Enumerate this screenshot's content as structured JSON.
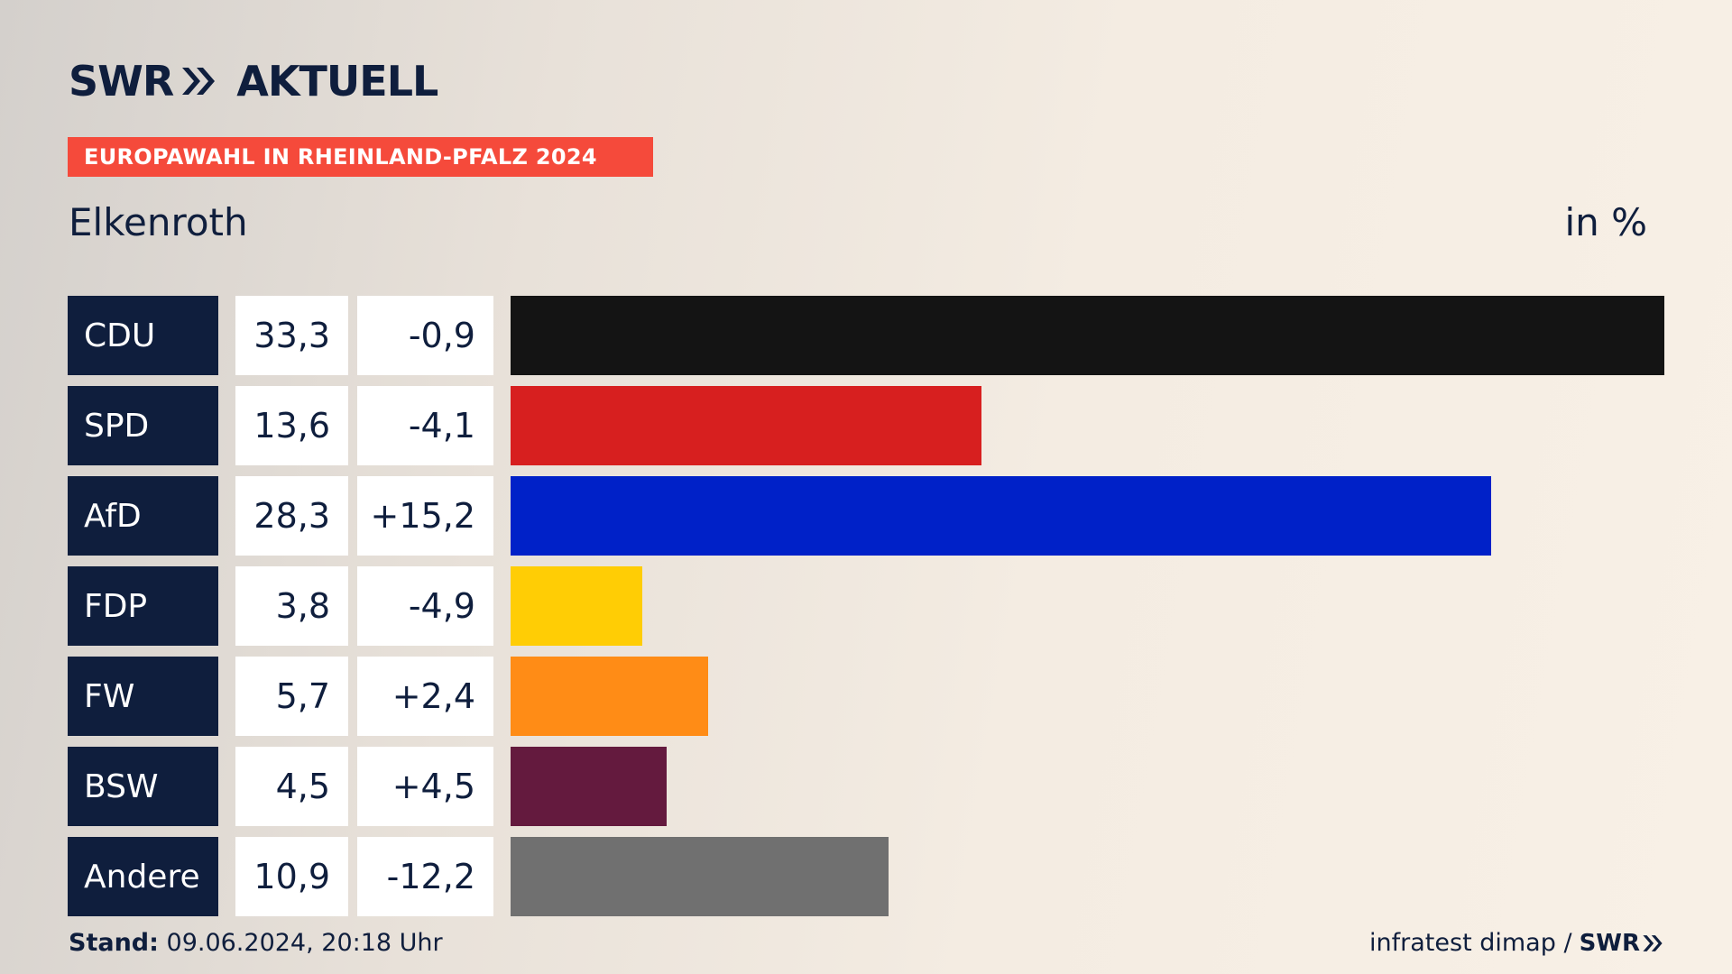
{
  "header": {
    "logo_text_left": "SWR",
    "logo_text_right": "AKTUELL",
    "banner": "EUROPAWAHL IN RHEINLAND-PFALZ 2024",
    "place": "Elkenroth",
    "unit": "in %"
  },
  "chart_data": {
    "type": "bar",
    "orientation": "horizontal",
    "categories": [
      "CDU",
      "SPD",
      "AfD",
      "FDP",
      "FW",
      "BSW",
      "Andere"
    ],
    "values": [
      33.3,
      13.6,
      28.3,
      3.8,
      5.7,
      4.5,
      10.9
    ],
    "value_labels": [
      "33,3",
      "13,6",
      "28,3",
      "3,8",
      "5,7",
      "4,5",
      "10,9"
    ],
    "differences": [
      "-0,9",
      "-4,1",
      "+15,2",
      "-4,9",
      "+2,4",
      "+4,5",
      "-12,2"
    ],
    "colors": [
      "#141414",
      "#d71f1f",
      "#0021c8",
      "#ffcd05",
      "#ff8c16",
      "#641a3e",
      "#707070"
    ],
    "title": "Elkenroth",
    "unit": "in %",
    "xlim": [
      0,
      33.3
    ]
  },
  "footer": {
    "stand_label": "Stand:",
    "stand_value": "09.06.2024, 20:18 Uhr",
    "source": "infratest dimap /",
    "source_logo": "SWR"
  }
}
